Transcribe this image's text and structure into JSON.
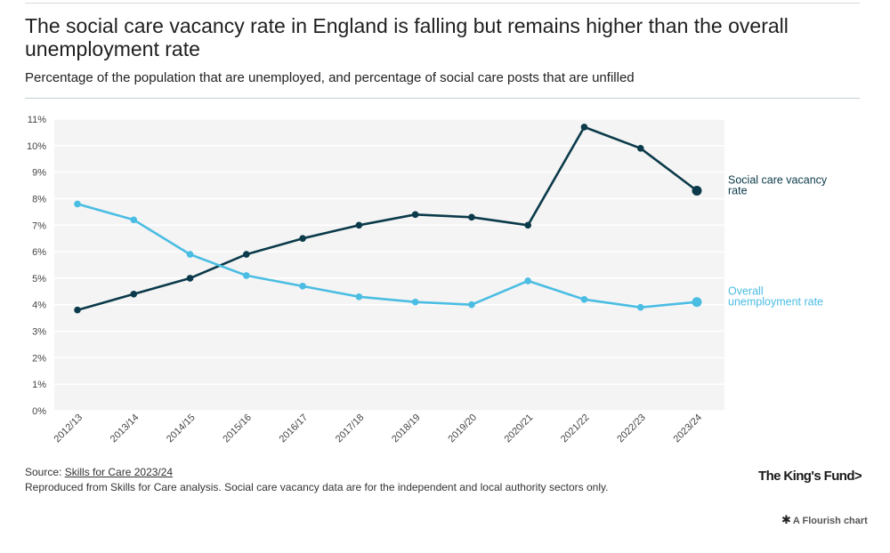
{
  "header": {
    "title": "The social care vacancy rate in England is falling but remains higher than the overall unemployment rate",
    "subtitle": "Percentage of the population that are unemployed, and percentage of social care posts that are unfilled"
  },
  "chart_data": {
    "type": "line",
    "title": "The social care vacancy rate in England is falling but remains higher than the overall unemployment rate",
    "subtitle": "Percentage of the population that are unemployed, and percentage of social care posts that are unfilled",
    "categories": [
      "2012/13",
      "2013/14",
      "2014/15",
      "2015/16",
      "2016/17",
      "2017/18",
      "2018/19",
      "2019/20",
      "2020/21",
      "2021/22",
      "2022/23",
      "2023/24"
    ],
    "y_ticks": [
      "0%",
      "1%",
      "2%",
      "3%",
      "4%",
      "5%",
      "6%",
      "7%",
      "8%",
      "9%",
      "10%",
      "11%"
    ],
    "ylim": [
      0,
      11
    ],
    "xlabel": "",
    "ylabel": "",
    "grid": true,
    "series": [
      {
        "name": "Social care vacancy rate",
        "label_lines": [
          "Social care vacancy",
          "rate"
        ],
        "color": "#0b3a4a",
        "values": [
          3.8,
          4.4,
          5.0,
          5.9,
          6.5,
          7.0,
          7.4,
          7.3,
          7.0,
          10.7,
          9.9,
          8.3
        ]
      },
      {
        "name": "Overall unemployment rate",
        "label_lines": [
          "Overall",
          "unemployment rate"
        ],
        "color": "#4bbde3",
        "values": [
          7.8,
          7.2,
          5.9,
          5.1,
          4.7,
          4.3,
          4.1,
          4.0,
          4.9,
          4.2,
          3.9,
          4.1
        ]
      }
    ]
  },
  "footer": {
    "source_prefix": "Source: ",
    "source_link": "Skills for Care 2023/24",
    "note": "Reproduced from Skills for Care analysis. Social care vacancy data are for the independent and local authority sectors only.",
    "logo": "The King's Fund>",
    "flourish": "A Flourish chart"
  }
}
